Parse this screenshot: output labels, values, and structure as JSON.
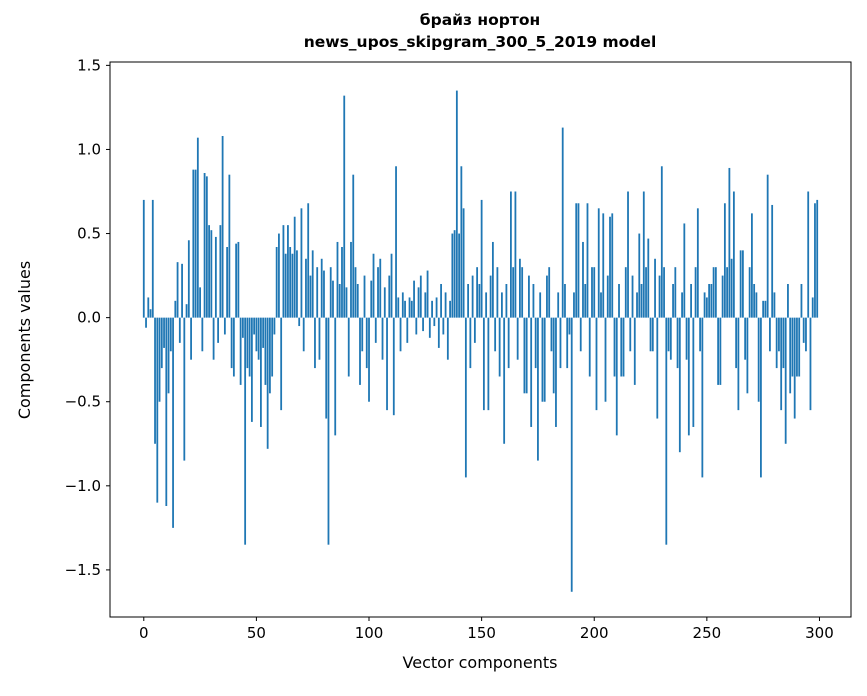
{
  "figure": {
    "title_line1": "брайз нортон",
    "title_line2": "news_upos_skipgram_300_5_2019 model",
    "xlabel": "Vector components",
    "ylabel": "Components values",
    "background": "#ffffff",
    "spine_color": "#000000"
  },
  "chart_data": {
    "type": "bar",
    "title": "брайз нортон\nnews_upos_skipgram_300_5_2019 model",
    "xlabel": "Vector components",
    "ylabel": "Components values",
    "bar_color": "#1f77b4",
    "grid": false,
    "legend": null,
    "x_start": 0,
    "xlim": [
      -15,
      314
    ],
    "ylim": [
      -1.78,
      1.52
    ],
    "xticks": [
      0,
      50,
      100,
      150,
      200,
      250,
      300
    ],
    "yticks": [
      -1.5,
      -1.0,
      -0.5,
      0.0,
      0.5,
      1.0,
      1.5
    ],
    "values": [
      0.7,
      -0.06,
      0.12,
      0.05,
      0.7,
      -0.75,
      -1.1,
      -0.5,
      -0.3,
      -0.18,
      -1.12,
      -0.45,
      -0.2,
      -1.25,
      0.1,
      0.33,
      -0.15,
      0.32,
      -0.85,
      0.08,
      0.46,
      -0.25,
      0.88,
      0.88,
      1.07,
      0.18,
      -0.2,
      0.86,
      0.84,
      0.55,
      0.52,
      -0.25,
      0.48,
      -0.15,
      0.55,
      1.08,
      -0.1,
      0.42,
      0.85,
      -0.3,
      -0.35,
      0.44,
      0.45,
      -0.4,
      -0.12,
      -1.35,
      -0.3,
      -0.35,
      -0.62,
      -0.1,
      -0.2,
      -0.25,
      -0.65,
      -0.18,
      -0.4,
      -0.78,
      -0.45,
      -0.35,
      -0.1,
      0.42,
      0.5,
      -0.55,
      0.55,
      0.38,
      0.55,
      0.42,
      0.38,
      0.6,
      0.4,
      -0.05,
      0.65,
      -0.2,
      0.35,
      0.68,
      0.25,
      0.4,
      -0.3,
      0.3,
      -0.25,
      0.35,
      0.28,
      -0.6,
      -1.35,
      0.3,
      0.22,
      -0.7,
      0.45,
      0.2,
      0.42,
      1.32,
      0.18,
      -0.35,
      0.45,
      0.85,
      0.3,
      0.2,
      -0.4,
      -0.2,
      0.25,
      -0.3,
      -0.5,
      0.22,
      0.38,
      -0.15,
      0.3,
      0.35,
      -0.25,
      0.18,
      -0.55,
      0.25,
      0.38,
      -0.58,
      0.9,
      0.12,
      -0.2,
      0.15,
      0.1,
      -0.15,
      0.12,
      0.1,
      0.22,
      -0.1,
      0.18,
      0.25,
      -0.08,
      0.15,
      0.28,
      -0.12,
      0.1,
      -0.05,
      0.12,
      -0.18,
      0.2,
      -0.1,
      0.15,
      -0.25,
      0.1,
      0.5,
      0.52,
      1.35,
      0.5,
      0.9,
      0.65,
      -0.95,
      0.2,
      -0.3,
      0.25,
      -0.15,
      0.3,
      0.2,
      0.7,
      -0.55,
      0.15,
      -0.55,
      0.25,
      0.45,
      -0.2,
      0.3,
      -0.35,
      0.15,
      -0.75,
      0.2,
      -0.3,
      0.75,
      0.3,
      0.75,
      -0.25,
      0.35,
      0.3,
      -0.45,
      -0.45,
      0.25,
      -0.65,
      0.2,
      -0.3,
      -0.85,
      0.15,
      -0.5,
      -0.5,
      0.25,
      0.3,
      -0.2,
      -0.45,
      -0.65,
      0.15,
      -0.3,
      1.13,
      0.2,
      -0.3,
      -0.1,
      -1.63,
      0.15,
      0.68,
      0.68,
      -0.2,
      0.45,
      0.2,
      0.68,
      -0.35,
      0.3,
      0.3,
      -0.55,
      0.65,
      0.15,
      0.62,
      -0.5,
      0.25,
      0.6,
      0.62,
      -0.35,
      -0.7,
      0.2,
      -0.35,
      -0.35,
      0.3,
      0.75,
      -0.2,
      0.25,
      -0.4,
      0.15,
      0.5,
      0.2,
      0.75,
      0.3,
      0.47,
      -0.2,
      -0.2,
      0.35,
      -0.6,
      0.25,
      0.9,
      0.3,
      -1.35,
      -0.2,
      -0.25,
      0.2,
      0.3,
      -0.3,
      -0.8,
      0.15,
      0.56,
      -0.25,
      -0.7,
      0.2,
      -0.65,
      0.3,
      0.65,
      -0.2,
      -0.95,
      0.15,
      0.12,
      0.2,
      0.2,
      0.3,
      0.3,
      -0.4,
      -0.4,
      0.25,
      0.68,
      0.3,
      0.89,
      0.35,
      0.75,
      -0.3,
      -0.55,
      0.4,
      0.4,
      -0.25,
      -0.45,
      0.3,
      0.62,
      0.2,
      0.15,
      -0.5,
      -0.95,
      0.1,
      0.1,
      0.85,
      -0.2,
      0.67,
      0.15,
      -0.3,
      -0.2,
      -0.55,
      -0.3,
      -0.75,
      0.2,
      -0.45,
      -0.35,
      -0.6,
      -0.35,
      -0.35,
      0.2,
      -0.15,
      -0.2,
      0.75,
      -0.55,
      0.12,
      0.68,
      0.7
    ]
  }
}
